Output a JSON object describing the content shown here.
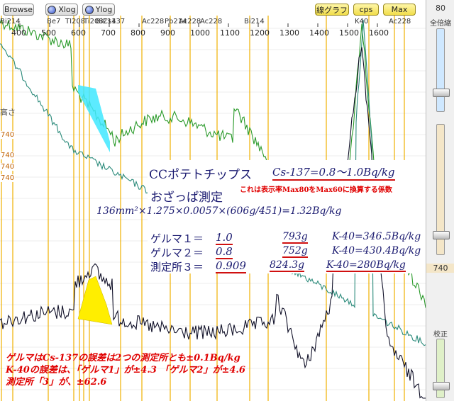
{
  "toolbar": {
    "browse": "Browse",
    "xlog": "Xlog",
    "ylog": "Ylog",
    "line_graph": "線グラフ",
    "cps": "cps",
    "max": "Max"
  },
  "axis": {
    "x_ticks": [
      "400",
      "500",
      "600",
      "700",
      "800",
      "900",
      "1000",
      "1100",
      "1200",
      "1300",
      "1400",
      "1500",
      "1600"
    ],
    "nuclides": [
      "Bi214",
      "Be7",
      "TI208",
      "Ti208",
      "Bi214",
      "Cs137",
      "Ac228",
      "Pb214",
      "Ac228",
      "Ac228",
      "Bi214",
      "K40",
      "Ac228"
    ],
    "height_label": "高さ",
    "y_labels": [
      "740",
      "740",
      "740",
      "740"
    ]
  },
  "right_panel": {
    "top_value": "80",
    "zoom_label": "全倍縮",
    "mid_value": "740",
    "calib_label": "校正"
  },
  "annotation": {
    "title_left": "CCポテトチップス",
    "title_right": "Cs-137=0.8～1.0Bq/kg",
    "subtitle": "おざっぱ測定",
    "convert_note": "これは表示率Max80をMax60に換算する係数",
    "formula": "136mm²×1.275×0.0057×(606g/451)=1.32Bq/kg",
    "rows": [
      {
        "name": "ゲルマ１＝",
        "value": "1.0",
        "mass": "793g",
        "k40": "K-40=346.5Bq/kg"
      },
      {
        "name": "ゲルマ２＝",
        "value": "0.8",
        "mass": "752g",
        "k40": "K-40=430.4Bq/kg"
      },
      {
        "name": "測定所３＝",
        "value": "0.909",
        "mass": "824.3g",
        "k40": "K-40=280Bq/kg"
      }
    ]
  },
  "note": [
    "ゲルマはCs-137の誤差は2つの測定所とも±0.1Bq/kg",
    "K-40の誤差は、「ゲルマ1」が±4.3 「ゲルマ2」が±4.6",
    "測定所「3」が、±62.6"
  ],
  "colors": {
    "green_trace": "#2a9a2a",
    "teal_trace": "#2a8a7a",
    "black_trace": "#101028",
    "marker_line": "#f0b000",
    "cyan_fill": "#40e8ff",
    "yellow_fill": "#ffee00",
    "annotation_text": "#1a1a70",
    "note_text": "#e00000"
  }
}
